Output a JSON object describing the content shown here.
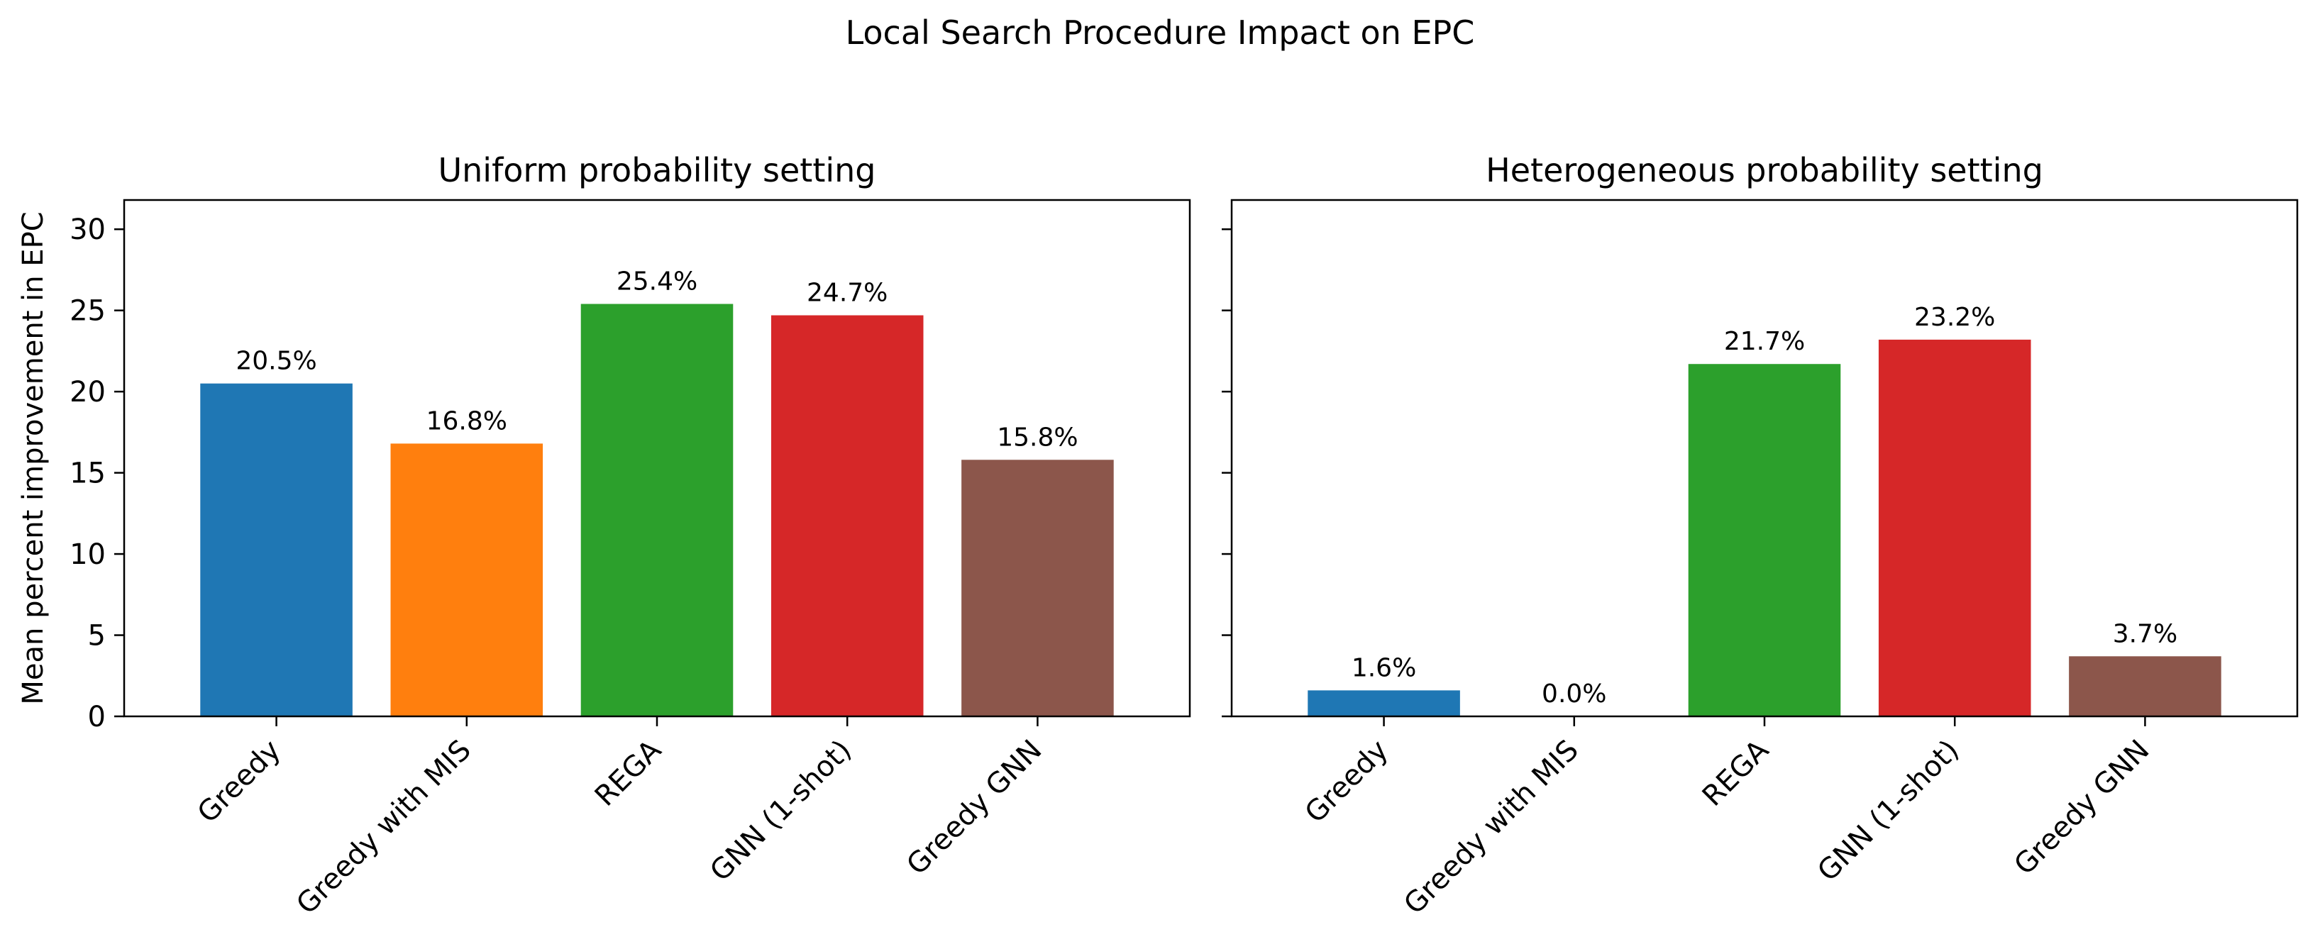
{
  "figure_title": "Local Search Procedure Impact on EPC",
  "chart_data": [
    {
      "type": "bar",
      "title": "Uniform probability setting",
      "xlabel": "",
      "ylabel": "Mean percent improvement in EPC",
      "categories": [
        "Greedy",
        "Greedy with MIS",
        "REGA",
        "GNN (1-shot)",
        "Greedy GNN"
      ],
      "values": [
        20.5,
        16.8,
        25.4,
        24.7,
        15.8
      ],
      "data_labels": [
        "20.5%",
        "16.8%",
        "25.4%",
        "24.7%",
        "15.8%"
      ],
      "colors": [
        "#1f77b4",
        "#ff7f0e",
        "#2ca02c",
        "#d62728",
        "#8c564b"
      ],
      "ylim": [
        0,
        31.8
      ],
      "yticks": [
        0,
        5,
        10,
        15,
        20,
        25,
        30
      ],
      "ytick_labels": [
        "0",
        "5",
        "10",
        "15",
        "20",
        "25",
        "30"
      ],
      "show_ytick_labels": true,
      "grid": false
    },
    {
      "type": "bar",
      "title": "Heterogeneous probability setting",
      "xlabel": "",
      "ylabel": "",
      "categories": [
        "Greedy",
        "Greedy with MIS",
        "REGA",
        "GNN (1-shot)",
        "Greedy GNN"
      ],
      "values": [
        1.6,
        0.0,
        21.7,
        23.2,
        3.7
      ],
      "data_labels": [
        "1.6%",
        "0.0%",
        "21.7%",
        "23.2%",
        "3.7%"
      ],
      "colors": [
        "#1f77b4",
        "#ff7f0e",
        "#2ca02c",
        "#d62728",
        "#8c564b"
      ],
      "ylim": [
        0,
        31.8
      ],
      "yticks": [
        0,
        5,
        10,
        15,
        20,
        25,
        30
      ],
      "ytick_labels": [
        "0",
        "5",
        "10",
        "15",
        "20",
        "25",
        "30"
      ],
      "show_ytick_labels": false,
      "grid": false
    }
  ]
}
